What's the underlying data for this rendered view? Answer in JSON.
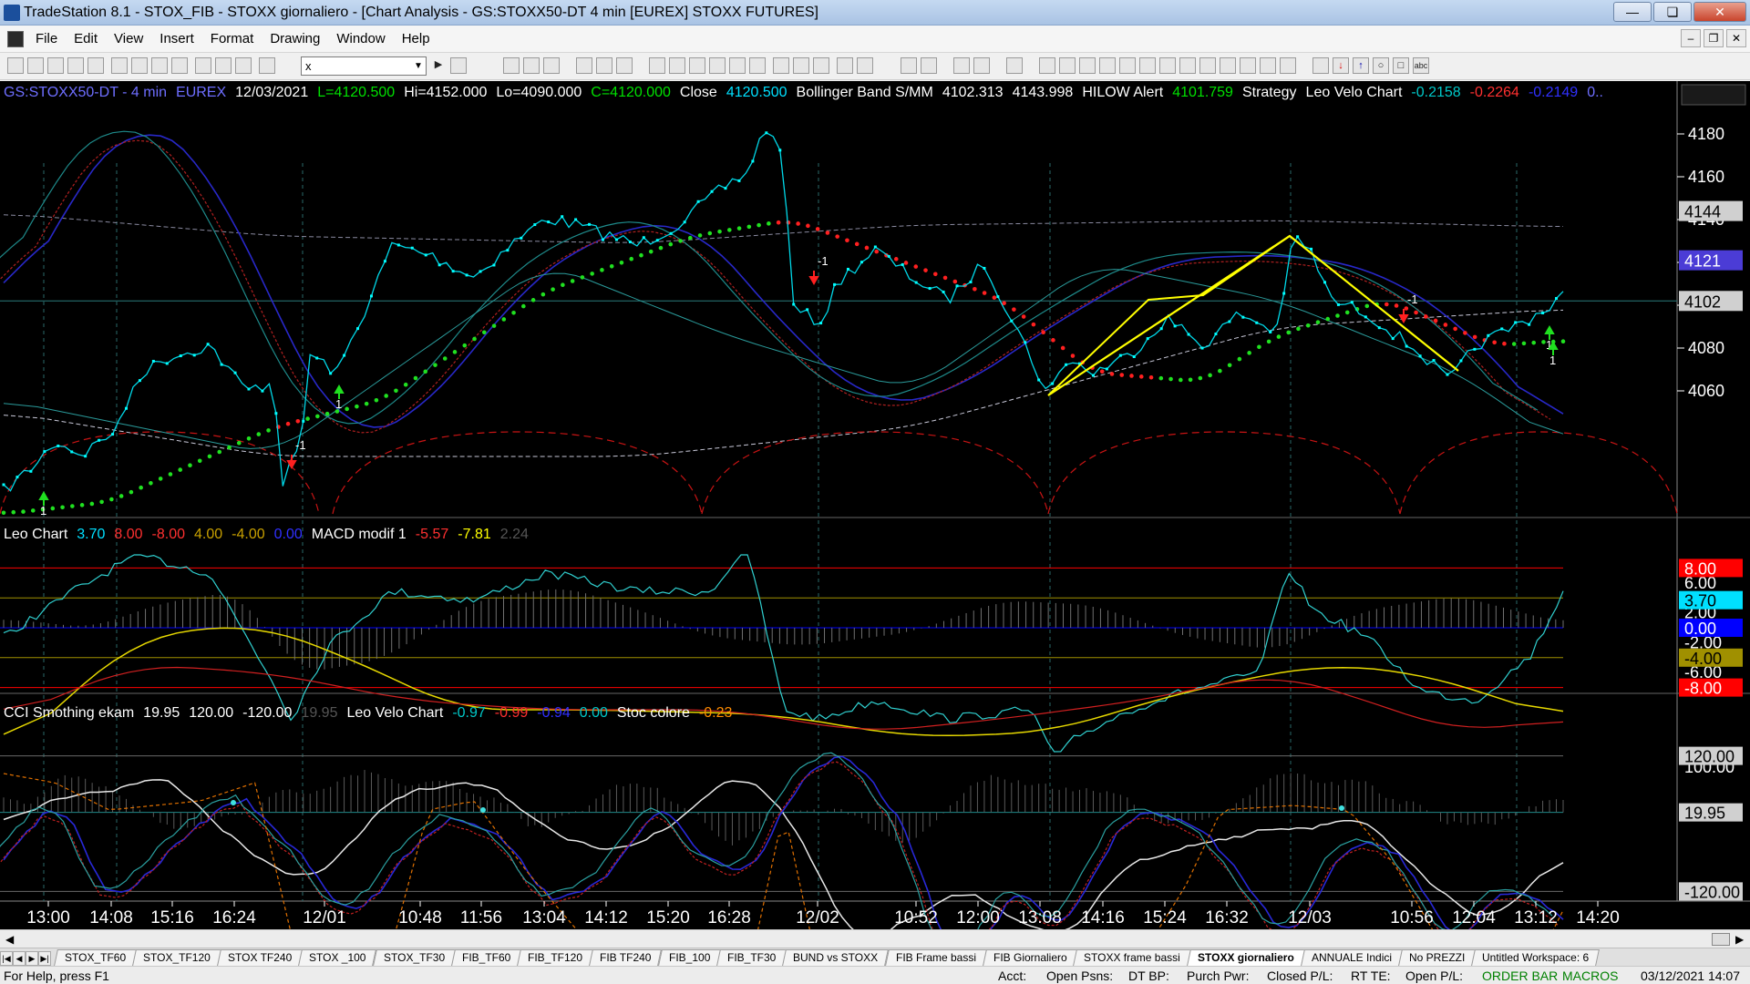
{
  "window": {
    "title": "TradeStation 8.1 - STOX_FIB - STOXX giornaliero - [Chart Analysis - GS:STOXX50-DT  4 min  [EUREX] STOXX FUTURES]",
    "minimize": "—",
    "restore": "❏",
    "close": "✕"
  },
  "menu": [
    "File",
    "Edit",
    "View",
    "Insert",
    "Format",
    "Drawing",
    "Window",
    "Help"
  ],
  "mdi_buttons": [
    "–",
    "❐",
    "✕"
  ],
  "toolbar": {
    "symbol_value": "x"
  },
  "price_panel": {
    "header": [
      {
        "text": "GS:STOXX50-DT - 4 min",
        "color": "#6e6eff"
      },
      {
        "text": "EUREX",
        "color": "#6e6eff"
      },
      {
        "text": "12/03/2021",
        "color": "#ffffff"
      },
      {
        "text": "L=4120.500",
        "color": "#00e000"
      },
      {
        "text": "Hi=4152.000",
        "color": "#ffffff"
      },
      {
        "text": "Lo=4090.000",
        "color": "#ffffff"
      },
      {
        "text": "C=4120.000",
        "color": "#00e000"
      },
      {
        "text": "Close",
        "color": "#ffffff"
      },
      {
        "text": "4120.500",
        "color": "#00e0ff"
      },
      {
        "text": "Bollinger Band S/MM",
        "color": "#ffffff"
      },
      {
        "text": "4102.313",
        "color": "#ffffff"
      },
      {
        "text": "4143.998",
        "color": "#ffffff"
      },
      {
        "text": "HILOW Alert",
        "color": "#ffffff"
      },
      {
        "text": "4101.759",
        "color": "#00e000"
      },
      {
        "text": "Strategy",
        "color": "#ffffff"
      },
      {
        "text": "Leo Velo Chart",
        "color": "#ffffff"
      },
      {
        "text": "-0.2158",
        "color": "#00c8c8"
      },
      {
        "text": "-0.2264",
        "color": "#ff3030"
      },
      {
        "text": "-0.2149",
        "color": "#3030ff"
      },
      {
        "text": "0..",
        "color": "#6e6eff"
      }
    ],
    "y_ticks": [
      "4180",
      "4160",
      "4140",
      "4120",
      "4100",
      "4080",
      "4060"
    ],
    "markers": [
      {
        "text": "4144",
        "bg": "#d0d0d0",
        "fg": "#000000"
      },
      {
        "text": "4121",
        "bg": "#4b3cd6",
        "fg": "#ffffff"
      },
      {
        "text": "4102",
        "bg": "#d0d0d0",
        "fg": "#000000"
      }
    ],
    "signals": [
      "1",
      "-1",
      "1",
      "-1",
      "-1",
      "1",
      "1"
    ]
  },
  "macd_panel": {
    "header": [
      {
        "text": "Leo Chart",
        "color": "#ffffff"
      },
      {
        "text": "3.70",
        "color": "#00e0ff"
      },
      {
        "text": "8.00",
        "color": "#ff3030"
      },
      {
        "text": "-8.00",
        "color": "#ff3030"
      },
      {
        "text": "4.00",
        "color": "#c8a000"
      },
      {
        "text": "-4.00",
        "color": "#c8a000"
      },
      {
        "text": "0.00",
        "color": "#3030ff"
      },
      {
        "text": "MACD modif 1",
        "color": "#ffffff"
      },
      {
        "text": "-5.57",
        "color": "#ff3030"
      },
      {
        "text": "-7.81",
        "color": "#ffff00"
      },
      {
        "text": "2.24",
        "color": "#555555"
      }
    ],
    "y_ticks": [
      "6.00",
      "2.00",
      "-2.00",
      "-6.00"
    ],
    "markers": [
      {
        "text": "8.00",
        "bg": "#ff0000",
        "fg": "#ffffff"
      },
      {
        "text": "3.70",
        "bg": "#00e0ff",
        "fg": "#000000"
      },
      {
        "text": "0.00",
        "bg": "#0000ff",
        "fg": "#ffffff"
      },
      {
        "text": "-4.00",
        "bg": "#a09000",
        "fg": "#000000"
      },
      {
        "text": "-8.00",
        "bg": "#ff0000",
        "fg": "#ffffff"
      }
    ]
  },
  "cci_panel": {
    "header": [
      {
        "text": "CCI Smothing ekam",
        "color": "#ffffff"
      },
      {
        "text": "19.95",
        "color": "#ffffff"
      },
      {
        "text": "120.00",
        "color": "#ffffff"
      },
      {
        "text": "-120.00",
        "color": "#ffffff"
      },
      {
        "text": "19.95",
        "color": "#555555"
      },
      {
        "text": "Leo Velo Chart",
        "color": "#ffffff"
      },
      {
        "text": "-0.97",
        "color": "#00c8c8"
      },
      {
        "text": "-0.99",
        "color": "#ff3030"
      },
      {
        "text": "-0.94",
        "color": "#3030ff"
      },
      {
        "text": "0.00",
        "color": "#00c8c8"
      },
      {
        "text": "Stoc colore",
        "color": "#ffffff"
      },
      {
        "text": "-0.23",
        "color": "#ff8c00"
      }
    ],
    "y_ticks": [
      "100.00"
    ],
    "markers": [
      {
        "text": "120.00",
        "bg": "#d0d0d0",
        "fg": "#000000"
      },
      {
        "text": "19.95",
        "bg": "#d0d0d0",
        "fg": "#000000"
      },
      {
        "text": "-120.00",
        "bg": "#d0d0d0",
        "fg": "#000000"
      }
    ]
  },
  "x_axis": [
    "13:00",
    "14:08",
    "15:16",
    "16:24",
    "12/01",
    "10:48",
    "11:56",
    "13:04",
    "14:12",
    "15:20",
    "16:28",
    "12/02",
    "10:52",
    "12:00",
    "13:08",
    "14:16",
    "15:24",
    "16:32",
    "12/03",
    "10:56",
    "12:04",
    "13:12",
    "14:20"
  ],
  "tabs": [
    "STOX_TF60",
    "STOX_TF120",
    "STOX TF240",
    "STOX _100",
    "STOX_TF30",
    "FIB_TF60",
    "FIB_TF120",
    "FIB TF240",
    "FIB_100",
    "FIB_TF30",
    "BUND vs STOXX",
    "FIB Frame bassi",
    "FIB Giornaliero",
    "STOXX frame bassi",
    "STOXX giornaliero",
    "ANNUALE Indici",
    "No PREZZI",
    "Untitled Workspace: 6"
  ],
  "active_tab": "STOXX giornaliero",
  "status": [
    "For Help, press F1",
    "Acct:",
    "Open Psns:",
    "DT BP:",
    "Purch Pwr:",
    "Closed P/L:",
    "RT TE:",
    "Open P/L:",
    "ORDER BAR",
    "MACROS",
    "03/12/2021 14:07"
  ],
  "status_colors": {
    "order_bar": "#008000",
    "macros": "#008000"
  }
}
